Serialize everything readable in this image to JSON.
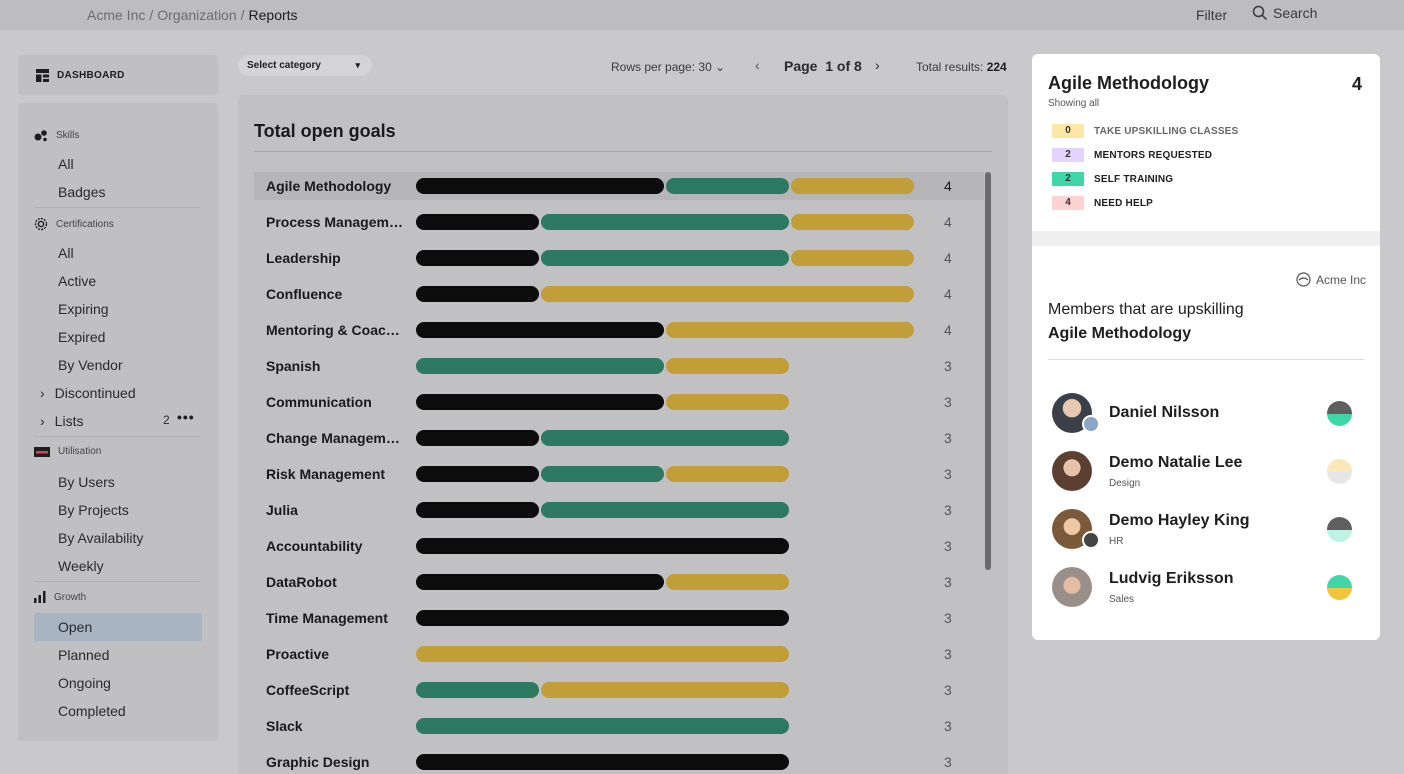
{
  "colors": {
    "black": "#0c0c0c",
    "green": "#2c7860",
    "gold": "#c19e37"
  },
  "breadcrumb": {
    "part1": "Acme Inc",
    "sep": "/",
    "part2": "Organization",
    "current": "Reports"
  },
  "top": {
    "filter": "Filter",
    "search": "Search"
  },
  "sidebar": {
    "dashboard": "DASHBOARD",
    "skills": {
      "title": "Skills",
      "items": [
        "All",
        "Badges"
      ]
    },
    "certifications": {
      "title": "Certifications",
      "items": [
        "All",
        "Active",
        "Expiring",
        "Expired",
        "By Vendor"
      ],
      "discontinued": "Discontinued",
      "lists": "Lists",
      "lists_count": "2"
    },
    "utilisation": {
      "title": "Utilisation",
      "items": [
        "By Users",
        "By Projects",
        "By Availability",
        "Weekly"
      ]
    },
    "growth": {
      "title": "Growth",
      "items": [
        "Open",
        "Planned",
        "Ongoing",
        "Completed"
      ]
    }
  },
  "toolbar": {
    "category": "Select category",
    "rows_label": "Rows per page:",
    "rows_value": "30",
    "page_label": "Page",
    "page_value": "1 of 8",
    "total_label": "Total results:",
    "total_value": "224"
  },
  "goals": {
    "title": "Total open goals",
    "rows": [
      {
        "name": "Agile Methodology",
        "count": "4",
        "segments": [
          2,
          1,
          1
        ],
        "highlight": true
      },
      {
        "name": "Process Management",
        "count": "4",
        "segments": [
          1,
          2,
          1
        ]
      },
      {
        "name": "Leadership",
        "count": "4",
        "segments": [
          1,
          2,
          1
        ]
      },
      {
        "name": "Confluence",
        "count": "4",
        "segments": [
          1,
          0,
          3
        ]
      },
      {
        "name": "Mentoring & Coaching",
        "count": "4",
        "segments": [
          2,
          0,
          2
        ]
      },
      {
        "name": "Spanish",
        "count": "3",
        "segments": [
          0,
          2,
          1
        ]
      },
      {
        "name": "Communication",
        "count": "3",
        "segments": [
          2,
          0,
          1
        ]
      },
      {
        "name": "Change Management",
        "count": "3",
        "segments": [
          1,
          2,
          0
        ]
      },
      {
        "name": "Risk Management",
        "count": "3",
        "segments": [
          1,
          1,
          1
        ]
      },
      {
        "name": "Julia",
        "count": "3",
        "segments": [
          1,
          2,
          0
        ]
      },
      {
        "name": "Accountability",
        "count": "3",
        "segments": [
          3,
          0,
          0
        ]
      },
      {
        "name": "DataRobot",
        "count": "3",
        "segments": [
          2,
          0,
          1
        ]
      },
      {
        "name": "Time Management",
        "count": "3",
        "segments": [
          3,
          0,
          0
        ]
      },
      {
        "name": "Proactive",
        "count": "3",
        "segments": [
          0,
          0,
          3
        ]
      },
      {
        "name": "CoffeeScript",
        "count": "3",
        "segments": [
          0,
          1,
          2
        ]
      },
      {
        "name": "Slack",
        "count": "3",
        "segments": [
          0,
          3,
          0
        ]
      },
      {
        "name": "Graphic Design",
        "count": "3",
        "segments": [
          3,
          0,
          0
        ]
      }
    ]
  },
  "detail": {
    "title": "Agile Methodology",
    "total": "4",
    "subtitle": "Showing all",
    "legend": [
      {
        "count": "0",
        "label": "TAKE UPSKILLING CLASSES",
        "color": "#fde7a4"
      },
      {
        "count": "2",
        "label": "MENTORS REQUESTED",
        "color": "#e4d3fb"
      },
      {
        "count": "2",
        "label": "SELF TRAINING",
        "color": "#3fd6a8"
      },
      {
        "count": "4",
        "label": "NEED HELP",
        "color": "#fcd2d2"
      }
    ],
    "org": "Acme Inc",
    "members_heading": "Members that are upskilling",
    "members_skill": "Agile Methodology",
    "members": [
      {
        "name": "Daniel Nilsson",
        "dept": "",
        "dot_top": "#5f5f5f",
        "dot_bottom": "#3fd6a8",
        "avatar": "#3b4048"
      },
      {
        "name": "Demo Natalie Lee",
        "dept": "Design",
        "dot_top": "#fbe8b8",
        "dot_bottom": "#e6e6e6",
        "avatar": "#5b4032"
      },
      {
        "name": "Demo Hayley King",
        "dept": "HR",
        "dot_top": "#5f5f5f",
        "dot_bottom": "#bdf3e2",
        "avatar": "#7a5a3a"
      },
      {
        "name": "Ludvig Eriksson",
        "dept": "Sales",
        "dot_top": "#3fd6a8",
        "dot_bottom": "#f2c53d",
        "avatar": "#9a8f88"
      }
    ]
  }
}
